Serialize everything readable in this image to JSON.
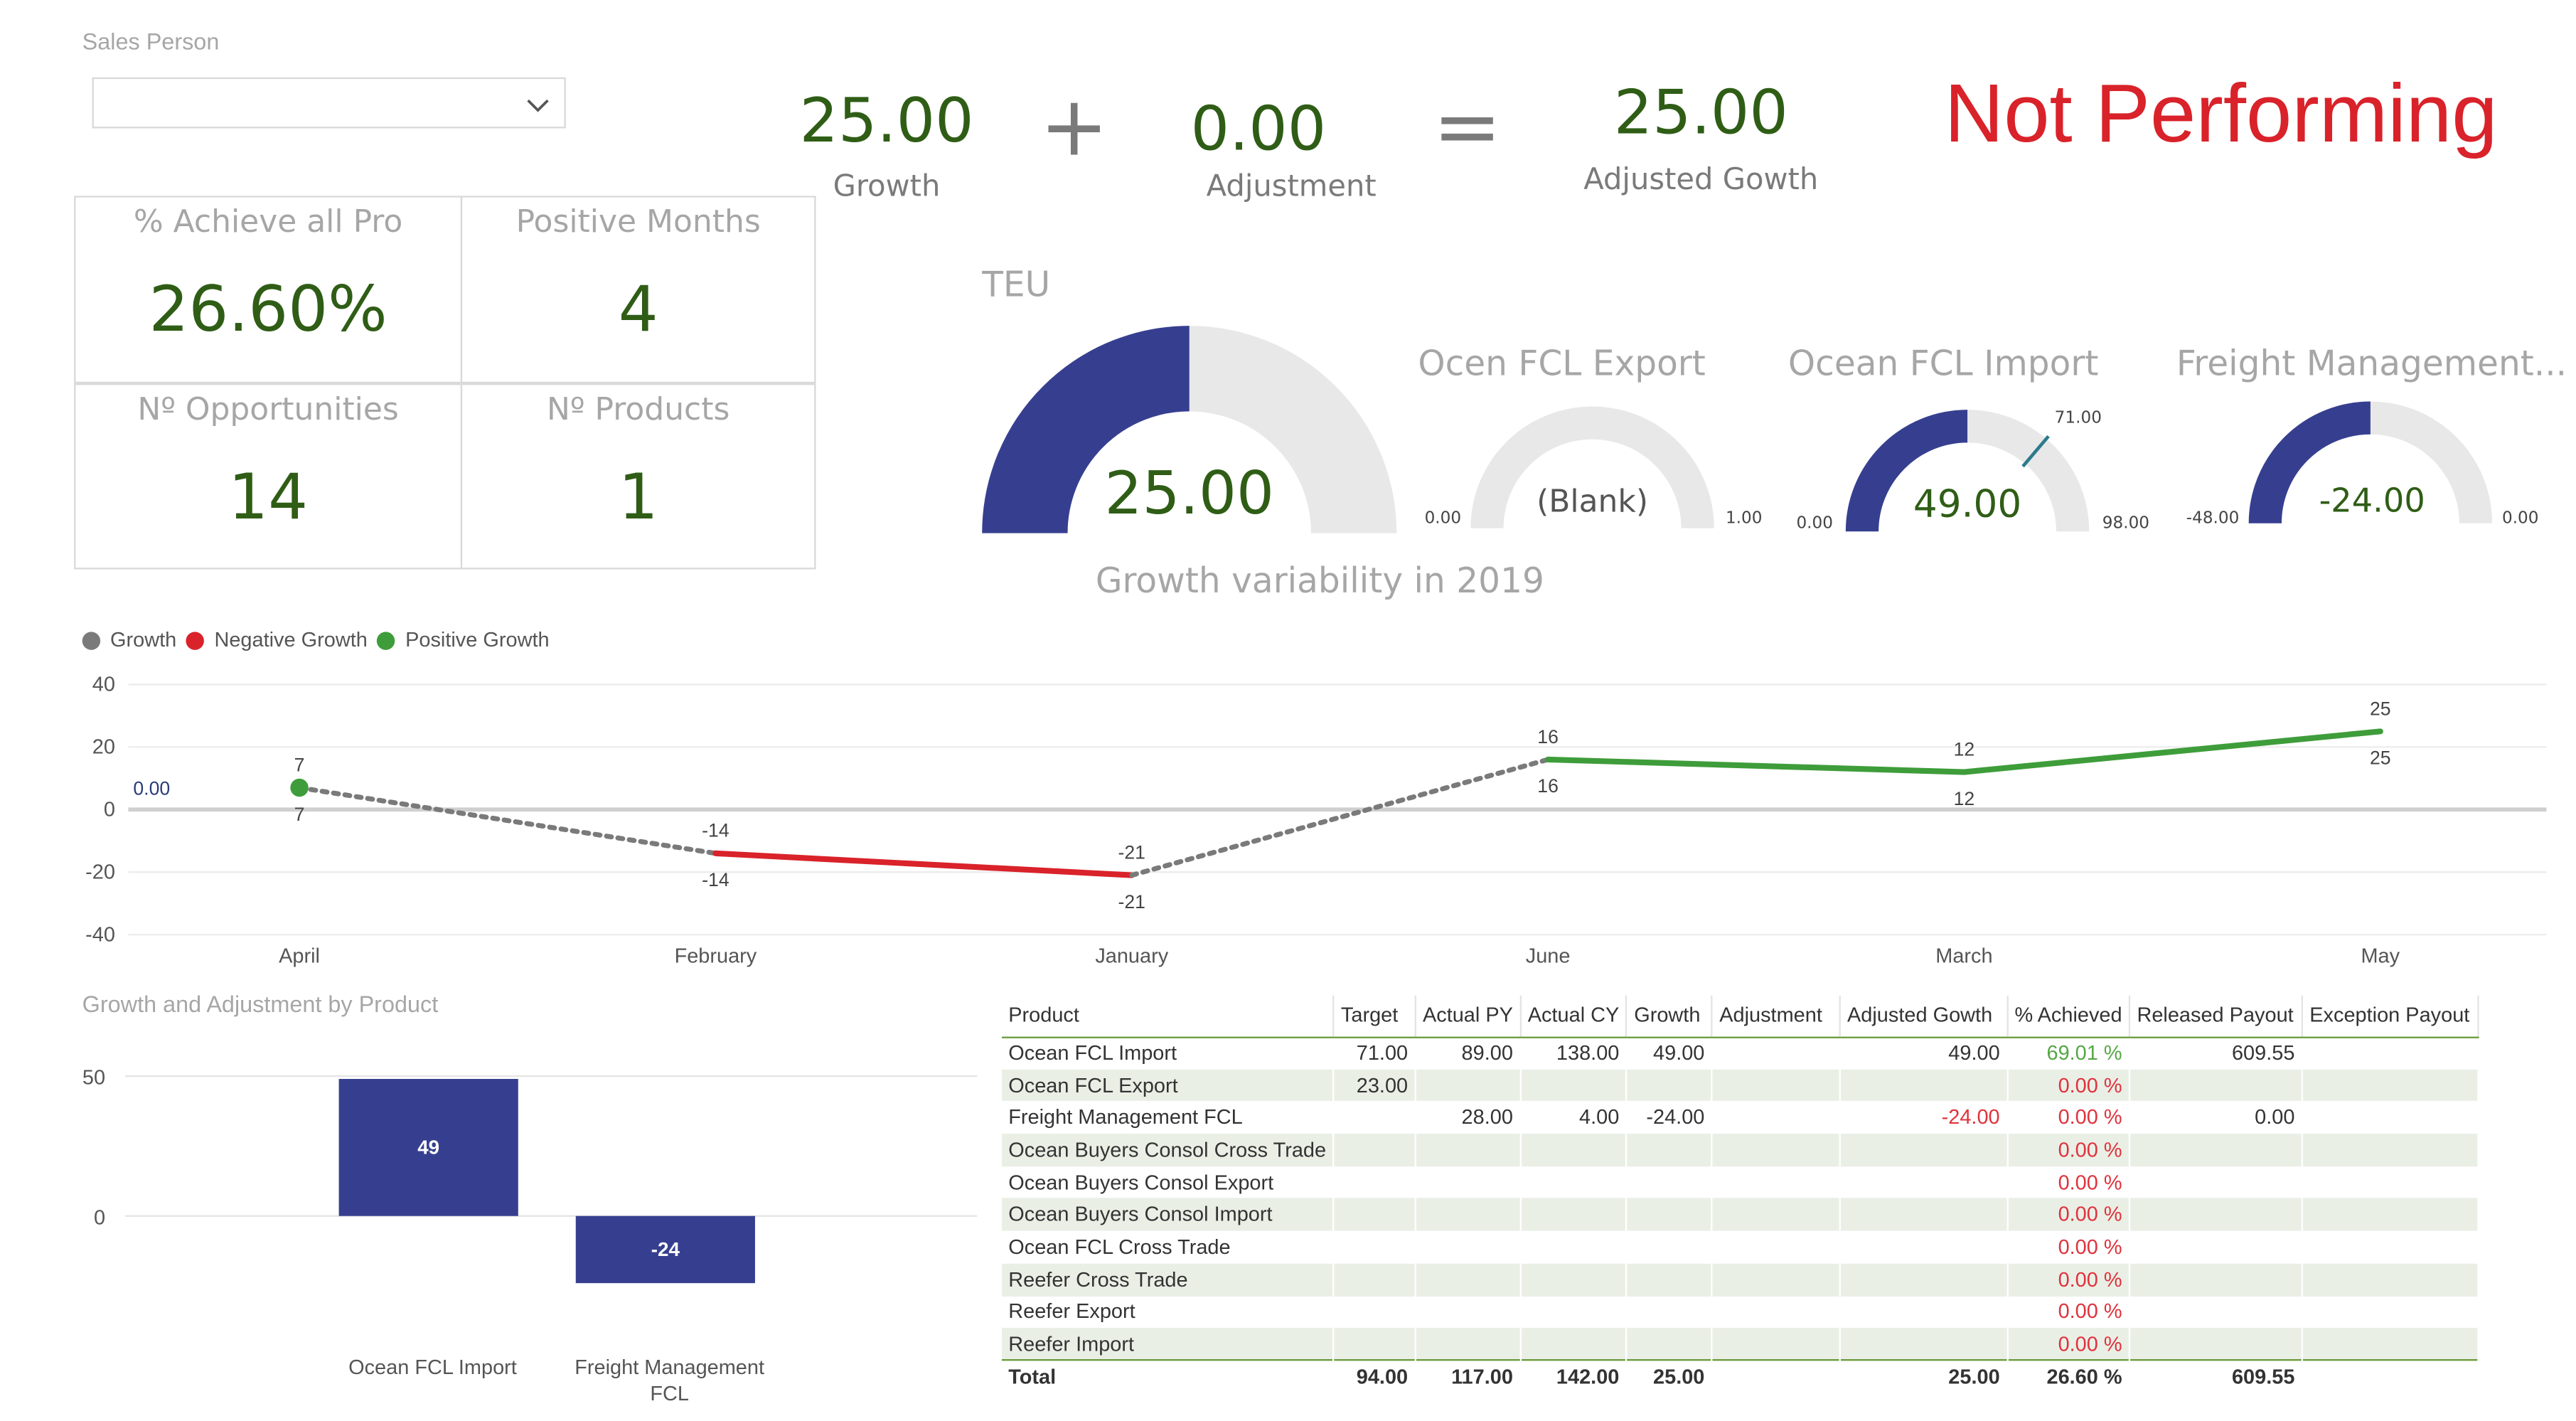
{
  "slicer": {
    "label": "Sales Person",
    "value": ""
  },
  "kpis": [
    {
      "title": "% Achieve all Pro",
      "value": "26.60%"
    },
    {
      "title": "Positive Months",
      "value": "4"
    },
    {
      "title": "Nº Opportunities",
      "value": "14"
    },
    {
      "title": "Nº Products",
      "value": "1"
    }
  ],
  "equation": {
    "growth_value": "25.00",
    "growth_label": "Growth",
    "plus": "+",
    "adjustment_value": "0.00",
    "adjustment_label": "Adjustment",
    "equals": "=",
    "adjusted_value": "25.00",
    "adjusted_label": "Adjusted Gowth"
  },
  "status": {
    "text": "Not Performing",
    "color": "#d9222a"
  },
  "colors": {
    "navy": "#363f8f",
    "gauge_bg": "#e8e8e8",
    "green": "#3e9d3a",
    "red": "#d9222a",
    "gray": "#7a7a7a",
    "dark_green": "#2f5d16"
  },
  "gauges": [
    {
      "title": "TEU",
      "value": "25.00",
      "min": "",
      "max": "",
      "fill": 0.5,
      "subtitle": "Growth variability in 2019"
    },
    {
      "title": "Ocen FCL Export",
      "value": "(Blank)",
      "min": "0.00",
      "max": "1.00",
      "fill": 0
    },
    {
      "title": "Ocean FCL Import",
      "value": "49.00",
      "min": "0.00",
      "max": "98.00",
      "fill": 0.5,
      "target": "71.00",
      "target_fraction": 0.7245
    },
    {
      "title": "Freight Management...",
      "value": "-24.00",
      "min": "-48.00",
      "max": "0.00",
      "fill": 0.5
    }
  ],
  "chart_data": [
    {
      "type": "line",
      "legend": [
        "Growth",
        "Negative Growth",
        "Positive Growth"
      ],
      "legend_colors": [
        "#7a7a7a",
        "#d9222a",
        "#3e9d3a"
      ],
      "legend_position": "top-left",
      "categories": [
        "April",
        "February",
        "January",
        "June",
        "March",
        "May"
      ],
      "series": [
        {
          "name": "Growth",
          "values": [
            7,
            -14,
            -21,
            16,
            12,
            25
          ]
        }
      ],
      "ylim": [
        -40,
        40
      ],
      "yticks": [
        "40",
        "20",
        "0",
        "-20",
        "-40"
      ],
      "reference_label": "0.00",
      "grid": true
    },
    {
      "type": "bar",
      "title": "Growth and Adjustment by Product",
      "categories": [
        "Ocean FCL Import",
        "Freight Management FCL"
      ],
      "values": [
        49,
        -24
      ],
      "data_labels": [
        "49",
        "-24"
      ],
      "yticks": [
        "50",
        "0"
      ],
      "ylim": [
        -35,
        55
      ]
    }
  ],
  "table": {
    "headers": [
      "Product",
      "Target",
      "Actual PY",
      "Actual CY",
      "Growth",
      "Adjustment",
      "Adjusted Gowth",
      "% Achieved",
      "Released Payout",
      "Exception Payout"
    ],
    "rows": [
      [
        "Ocean FCL Import",
        "71.00",
        "89.00",
        "138.00",
        "49.00",
        "",
        "49.00",
        "69.01 %",
        "609.55",
        ""
      ],
      [
        "Ocean FCL Export",
        "23.00",
        "",
        "",
        "",
        "",
        "",
        "0.00 %",
        "",
        ""
      ],
      [
        "Freight Management FCL",
        "",
        "28.00",
        "4.00",
        "-24.00",
        "",
        "-24.00",
        "0.00 %",
        "0.00",
        ""
      ],
      [
        "Ocean Buyers Consol Cross Trade",
        "",
        "",
        "",
        "",
        "",
        "",
        "0.00 %",
        "",
        ""
      ],
      [
        "Ocean Buyers Consol Export",
        "",
        "",
        "",
        "",
        "",
        "",
        "0.00 %",
        "",
        ""
      ],
      [
        "Ocean Buyers Consol Import",
        "",
        "",
        "",
        "",
        "",
        "",
        "0.00 %",
        "",
        ""
      ],
      [
        "Ocean FCL Cross Trade",
        "",
        "",
        "",
        "",
        "",
        "",
        "0.00 %",
        "",
        ""
      ],
      [
        "Reefer Cross Trade",
        "",
        "",
        "",
        "",
        "",
        "",
        "0.00 %",
        "",
        ""
      ],
      [
        "Reefer Export",
        "",
        "",
        "",
        "",
        "",
        "",
        "0.00 %",
        "",
        ""
      ],
      [
        "Reefer Import",
        "",
        "",
        "",
        "",
        "",
        "",
        "0.00 %",
        "",
        ""
      ]
    ],
    "total": [
      "Total",
      "94.00",
      "117.00",
      "142.00",
      "25.00",
      "",
      "25.00",
      "26.60 %",
      "609.55",
      ""
    ]
  }
}
